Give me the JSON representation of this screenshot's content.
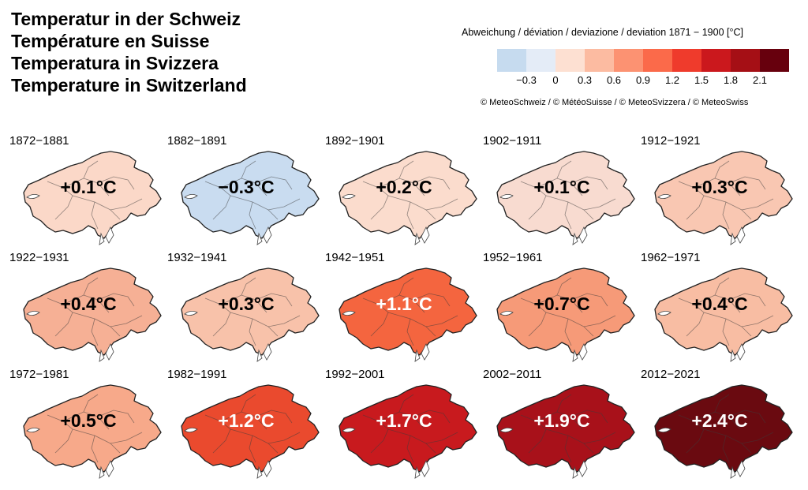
{
  "titles": [
    "Temperatur in der Schweiz",
    "Température en Suisse",
    "Temperatura in Svizzera",
    "Temperature in Switzerland"
  ],
  "legend": {
    "title": "Abweichung / déviation / deviazione / deviation 1871 − 1900 [°C]",
    "colors": [
      "#c6dbef",
      "#e4ecf7",
      "#fde0d2",
      "#fcbba1",
      "#fc9272",
      "#fb6a4a",
      "#ef3b2c",
      "#cb181d",
      "#a50f15",
      "#67000d"
    ],
    "ticks": [
      "−0.3",
      "0",
      "0.3",
      "0.6",
      "0.9",
      "1.2",
      "1.5",
      "1.8",
      "2.1"
    ]
  },
  "copyright": "© MeteoSchweiz / © MétéoSuisse / © MeteoSvizzera / © MeteoSwiss",
  "panels": [
    {
      "period": "1872−1881",
      "label": "+0.1°C",
      "value": 0.1,
      "fill": "#fbd8c8",
      "label_color": "#000000"
    },
    {
      "period": "1882−1891",
      "label": "−0.3°C",
      "value": -0.3,
      "fill": "#c9dcf0",
      "label_color": "#000000"
    },
    {
      "period": "1892−1901",
      "label": "+0.2°C",
      "value": 0.2,
      "fill": "#fbdccd",
      "label_color": "#000000"
    },
    {
      "period": "1902−1911",
      "label": "+0.1°C",
      "value": 0.1,
      "fill": "#f8dbd0",
      "label_color": "#000000"
    },
    {
      "period": "1912−1921",
      "label": "+0.3°C",
      "value": 0.3,
      "fill": "#f9c7b2",
      "label_color": "#000000"
    },
    {
      "period": "1922−1931",
      "label": "+0.4°C",
      "value": 0.4,
      "fill": "#f6b095",
      "label_color": "#000000"
    },
    {
      "period": "1932−1941",
      "label": "+0.3°C",
      "value": 0.3,
      "fill": "#f8c2aa",
      "label_color": "#000000"
    },
    {
      "period": "1942−1951",
      "label": "+1.1°C",
      "value": 1.1,
      "fill": "#f4653f",
      "label_color": "#ffffff"
    },
    {
      "period": "1952−1961",
      "label": "+0.7°C",
      "value": 0.7,
      "fill": "#f69a78",
      "label_color": "#000000"
    },
    {
      "period": "1962−1971",
      "label": "+0.4°C",
      "value": 0.4,
      "fill": "#f8bda3",
      "label_color": "#000000"
    },
    {
      "period": "1972−1981",
      "label": "+0.5°C",
      "value": 0.5,
      "fill": "#f7a98a",
      "label_color": "#000000"
    },
    {
      "period": "1982−1991",
      "label": "+1.2°C",
      "value": 1.2,
      "fill": "#ea4a2e",
      "label_color": "#ffffff"
    },
    {
      "period": "1992−2001",
      "label": "+1.7°C",
      "value": 1.7,
      "fill": "#c81a1e",
      "label_color": "#ffffff"
    },
    {
      "period": "2002−2011",
      "label": "+1.9°C",
      "value": 1.9,
      "fill": "#a8111a",
      "label_color": "#ffffff"
    },
    {
      "period": "2012−2021",
      "label": "+2.4°C",
      "value": 2.4,
      "fill": "#6a0a10",
      "label_color": "#ffffff"
    }
  ]
}
